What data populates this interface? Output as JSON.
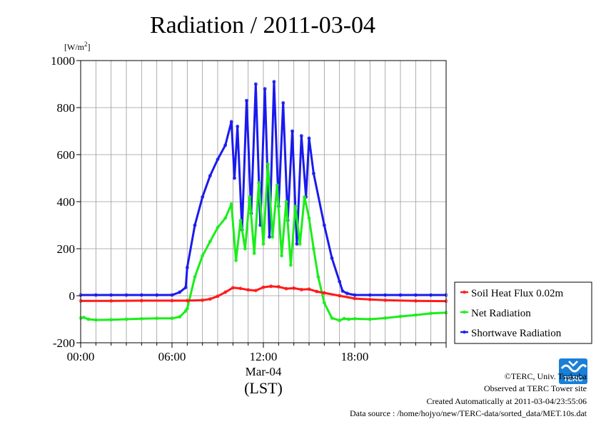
{
  "chart_data": {
    "type": "line",
    "title": "Radiation / 2011-03-04",
    "ylabel_prefix": "[W/m",
    "ylabel_sup": "2",
    "ylabel_suffix": "]",
    "xlabel_date": "Mar-04",
    "xlabel_unit": "(LST)",
    "ylim": [
      -200,
      1000
    ],
    "xlim_hours": [
      0,
      24
    ],
    "yticks": [
      -200,
      0,
      200,
      400,
      600,
      800,
      1000
    ],
    "xticks": [
      {
        "hour": 0,
        "label": "00:00"
      },
      {
        "hour": 6,
        "label": "06:00"
      },
      {
        "hour": 12,
        "label": "12:00"
      },
      {
        "hour": 18,
        "label": "18:00"
      }
    ],
    "grid": true,
    "legend_position": "right, lower",
    "series": [
      {
        "name": "Soil Heat Flux 0.02m",
        "color": "#ff1a1a",
        "x": [
          0,
          2,
          4,
          6,
          7,
          8,
          8.5,
          9,
          9.5,
          10,
          10.5,
          11,
          11.5,
          12,
          12.5,
          13,
          13.5,
          14,
          14.5,
          15,
          15.5,
          16,
          17,
          18,
          19,
          20,
          22,
          24
        ],
        "y": [
          -22,
          -22,
          -21,
          -21,
          -21,
          -19,
          -14,
          -2,
          15,
          34,
          31,
          25,
          22,
          36,
          40,
          38,
          30,
          32,
          26,
          28,
          18,
          12,
          0,
          -12,
          -16,
          -19,
          -22,
          -23
        ]
      },
      {
        "name": "Net Radiation",
        "color": "#1aee1a",
        "x": [
          0,
          0.2,
          0.5,
          1,
          2,
          3,
          4,
          5,
          6,
          6.5,
          6.9,
          7,
          7.5,
          8,
          8.5,
          9,
          9.5,
          9.9,
          10.2,
          10.5,
          10.8,
          11.1,
          11.4,
          11.7,
          12,
          12.3,
          12.6,
          12.9,
          13.2,
          13.5,
          13.8,
          14.1,
          14.4,
          14.7,
          15,
          15.3,
          15.6,
          16,
          16.5,
          17,
          17.3,
          17.6,
          18,
          19,
          20,
          21,
          22,
          23,
          24
        ],
        "y": [
          -95,
          -92,
          -100,
          -103,
          -102,
          -100,
          -98,
          -96,
          -96,
          -90,
          -65,
          -55,
          80,
          170,
          230,
          290,
          330,
          390,
          150,
          320,
          200,
          420,
          180,
          480,
          220,
          560,
          250,
          470,
          170,
          400,
          130,
          380,
          220,
          420,
          330,
          200,
          80,
          -30,
          -95,
          -105,
          -97,
          -100,
          -98,
          -100,
          -95,
          -88,
          -82,
          -75,
          -72
        ]
      },
      {
        "name": "Shortwave Radiation",
        "color": "#1a1aee",
        "x": [
          0,
          1,
          2,
          3,
          4,
          5,
          6,
          6.5,
          6.9,
          7,
          7.5,
          8,
          8.5,
          9,
          9.5,
          9.9,
          10.1,
          10.3,
          10.6,
          10.9,
          11.2,
          11.5,
          11.8,
          12.1,
          12.4,
          12.7,
          13,
          13.3,
          13.6,
          13.9,
          14.2,
          14.5,
          14.8,
          15,
          15.3,
          16,
          16.5,
          17,
          17.2,
          17.5,
          18,
          19,
          20,
          21,
          22,
          23,
          24
        ],
        "y": [
          3,
          3,
          3,
          3,
          3,
          3,
          3,
          15,
          35,
          120,
          300,
          420,
          510,
          580,
          640,
          740,
          500,
          720,
          280,
          830,
          350,
          900,
          300,
          880,
          250,
          910,
          380,
          820,
          320,
          700,
          220,
          680,
          420,
          670,
          520,
          300,
          160,
          60,
          20,
          10,
          3,
          3,
          3,
          3,
          3,
          3,
          3
        ]
      }
    ]
  },
  "footer": {
    "copyright": "©TERC, Univ. Tsukuba",
    "observed": "Observed at TERC Tower site",
    "created": "Created Automatically at 2011-03-04/23:55:06",
    "source": "Data source : /home/hojyo/new/TERC-data/sorted_data/MET.10s.dat"
  },
  "logo": {
    "text": "TERC",
    "color": "#1a7fd6"
  }
}
